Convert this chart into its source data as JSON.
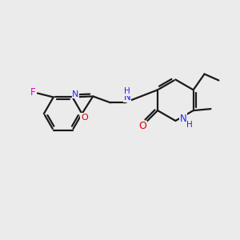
{
  "bg_color": "#ebebeb",
  "bond_color": "#1a1a1a",
  "bond_width": 1.6,
  "atom_colors": {
    "N": "#2222ff",
    "O": "#dd0000",
    "F": "#dd00dd",
    "C": "#1a1a1a",
    "H": "#2222ff"
  },
  "figsize": [
    3.0,
    3.0
  ],
  "dpi": 100
}
